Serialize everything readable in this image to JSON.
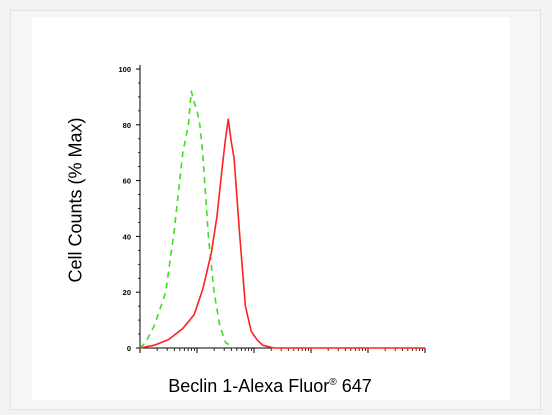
{
  "chart_data": {
    "type": "line",
    "xlabel_text": "Beclin 1-Alexa Fluor",
    "xlabel_reg": "®",
    "xlabel_num": "647",
    "ylabel": "Cell Counts (% Max)",
    "ylim": [
      0,
      100
    ],
    "yticks": [
      "0",
      "20",
      "40",
      "60",
      "80",
      "100"
    ],
    "xscale": "log",
    "xlim": [
      0,
      100
    ],
    "grid": false,
    "series": [
      {
        "color": "#3fdd1f",
        "style": "dashed",
        "x": [
          0,
          2,
          5,
          9,
          12,
          15,
          17,
          18,
          19,
          20,
          21,
          22,
          24,
          26,
          28,
          30,
          33
        ],
        "y": [
          0,
          2,
          8,
          20,
          42,
          70,
          80,
          92,
          88,
          85,
          80,
          70,
          40,
          20,
          8,
          2,
          0
        ]
      },
      {
        "color": "#ff2020",
        "style": "solid",
        "x": [
          0,
          5,
          10,
          15,
          19,
          22,
          25,
          27,
          29,
          30,
          31,
          32,
          33,
          35,
          37,
          39,
          41,
          43,
          45,
          47,
          50,
          100
        ],
        "y": [
          0,
          1,
          3,
          7,
          12,
          21,
          34,
          47,
          66,
          75,
          82,
          74,
          68,
          40,
          15,
          6,
          3,
          1,
          0.5,
          0,
          0,
          0
        ]
      }
    ]
  }
}
